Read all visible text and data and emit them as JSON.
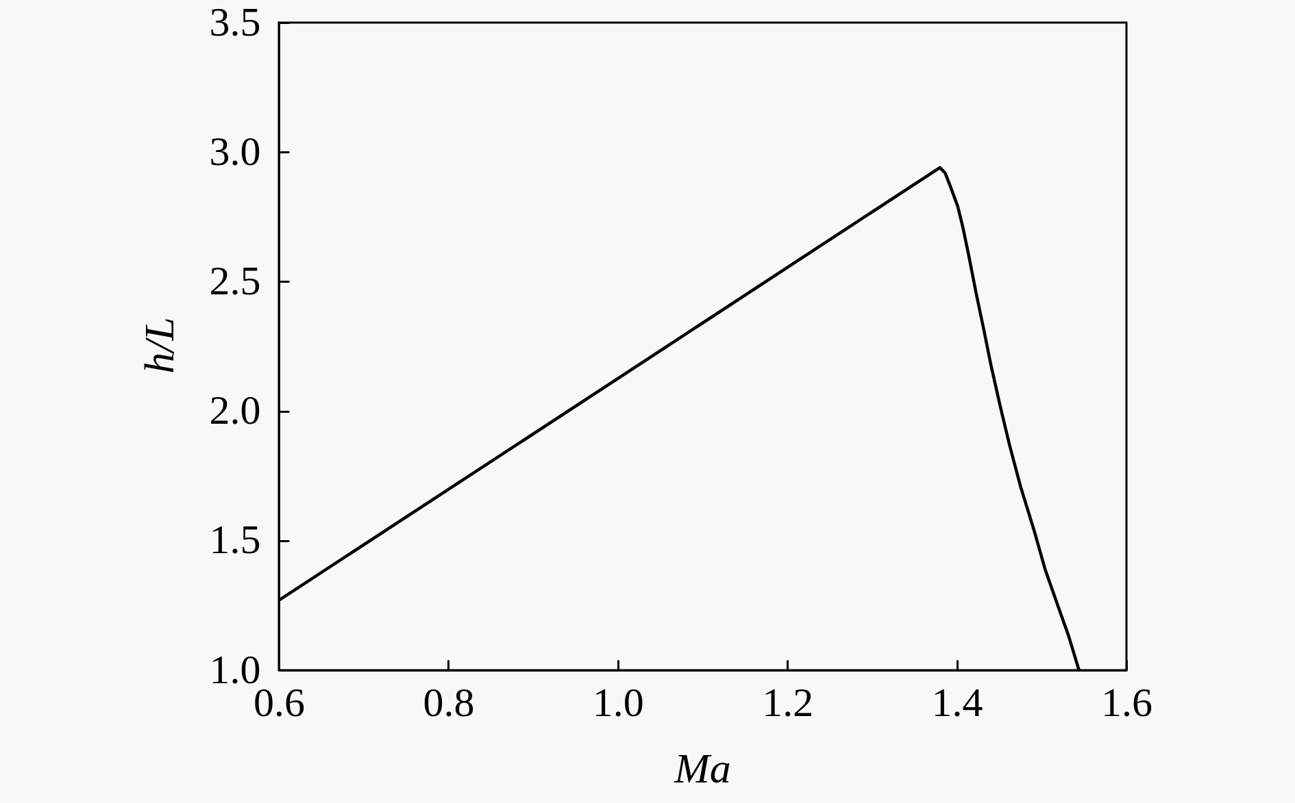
{
  "chart_data": {
    "type": "line",
    "xlabel": "Ma",
    "ylabel": "h/L",
    "x": [
      0.6,
      0.8,
      1.0,
      1.2,
      1.37,
      1.38,
      1.386,
      1.392,
      1.401,
      1.407,
      1.414,
      1.423,
      1.432,
      1.44,
      1.451,
      1.462,
      1.475,
      1.491,
      1.504,
      1.519,
      1.532,
      1.544
    ],
    "series": [
      {
        "color": "#000000",
        "values": [
          1.27,
          1.698,
          2.126,
          2.555,
          2.919,
          2.94,
          2.92,
          2.87,
          2.79,
          2.71,
          2.6,
          2.45,
          2.31,
          2.18,
          2.02,
          1.87,
          1.71,
          1.54,
          1.39,
          1.25,
          1.13,
          1.0
        ]
      }
    ],
    "xlim": [
      0.6,
      1.6
    ],
    "ylim": [
      1.0,
      3.5
    ],
    "xticks": [
      0.6,
      0.8,
      {
        "value": 1,
        "label": "1.0"
      },
      1.2,
      1.4,
      1.6
    ],
    "yticks": [
      {
        "value": 1,
        "label": "1.0"
      },
      1.5,
      {
        "value": 2,
        "label": "2.0"
      },
      2.5,
      {
        "value": 3,
        "label": "3.0"
      },
      3.5
    ],
    "line_style": "solid"
  }
}
